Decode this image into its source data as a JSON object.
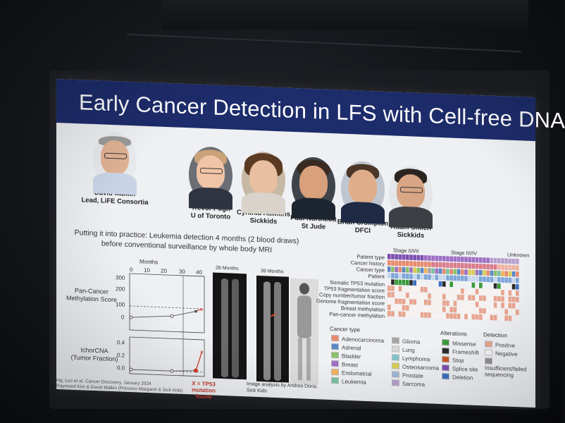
{
  "slide": {
    "title": "Early Cancer Detection in LFS with Cell-free DNA",
    "people": [
      {
        "name": "David Malkin",
        "affiliation": "Lead, LiFE Consortia"
      },
      {
        "name": "Trevor Pugh",
        "affiliation": "U of Toronto"
      },
      {
        "name": "Cynthia Hawkins",
        "affiliation": "Sickkids"
      },
      {
        "name": "Paul Northcott",
        "affiliation": "St Jude"
      },
      {
        "name": "Brian Crompton",
        "affiliation": "DFCI"
      },
      {
        "name": "Adam Shlien",
        "affiliation": "Sickkids"
      }
    ],
    "subtitle_line1": "Putting it into practice: Leukemia detection 4 months (2 blood draws)",
    "subtitle_line2": "before conventional surveillance by whole body MRI",
    "plot": {
      "months_label": "Months",
      "x_ticks": [
        "0",
        "10",
        "20",
        "30",
        "40"
      ],
      "top_ylabel_line1": "Pan-Cancer",
      "top_ylabel_line2": "Methylation Score",
      "top_y_ticks": [
        "300",
        "200",
        "100",
        "0"
      ],
      "bottom_ylabel_line1": "IchorCNA",
      "bottom_ylabel_line2": "(Tumor Fraction)",
      "bottom_y_ticks": [
        "0.4",
        "0.2",
        "0.0"
      ],
      "annotation": "X = TP53 mutation found"
    },
    "mri": {
      "label_28": "28 Months",
      "label_39": "39 Months",
      "credit": "Image analysis by Andrea Doria, Sick Kids"
    },
    "citation_line1": "ing, Luo et al. Cancer Discovery, January 2024",
    "citation_line2": "Raymond Kim & David Malkin (Princess Margaret & Sick Kids)",
    "heatmap": {
      "stages": [
        "Stage 0/I/II",
        "Stage III/IV",
        "Unknown"
      ],
      "rows": [
        "Patient type",
        "Cancer history",
        "Cancer type",
        "Patient",
        "Somatic TP53 mutation",
        "TP53 fragmentation score",
        "Copy number/tumor fraction",
        "Genome fragmentation score",
        "Breast methylation",
        "Pan-cancer methylation"
      ]
    },
    "legend": {
      "cancer_type_title": "Cancer type",
      "cancer_types_col1": [
        "Adenocarcinoma",
        "Adrenal",
        "Bladder",
        "Breast",
        "Endometrial",
        "Leukemia"
      ],
      "cancer_types_col2": [
        "Glioma",
        "Lung",
        "Lymphoma",
        "Osteosarcoma",
        "Prostate",
        "Sarcoma"
      ],
      "alterations_title": "Alterations",
      "alterations": [
        "Missense",
        "Frameshift",
        "Stop",
        "Splice site",
        "Deletion"
      ],
      "detection_title": "Detection",
      "detection": [
        "Positive",
        "Negative",
        "Insufficient/failed sequencing"
      ]
    },
    "colors": {
      "title_bar": "#1d2c6b",
      "plot_red": "#d63a2a",
      "cancer_types_col1": [
        "#e8896e",
        "#5b86c5",
        "#8cc06a",
        "#9d6fc4",
        "#f2b25a",
        "#78c2a0"
      ],
      "cancer_types_col2": [
        "#a3a3a3",
        "#d7d7d7",
        "#7fc5c7",
        "#d9cc55",
        "#9fb6d8",
        "#b79fcd"
      ],
      "alterations": [
        "#3b9a3b",
        "#2a2a2a",
        "#c85a2a",
        "#7d4fb0",
        "#3b6fc0"
      ],
      "detection": [
        "#e8a48e",
        "#f5f5f5",
        "#8f8f8f"
      ]
    }
  }
}
